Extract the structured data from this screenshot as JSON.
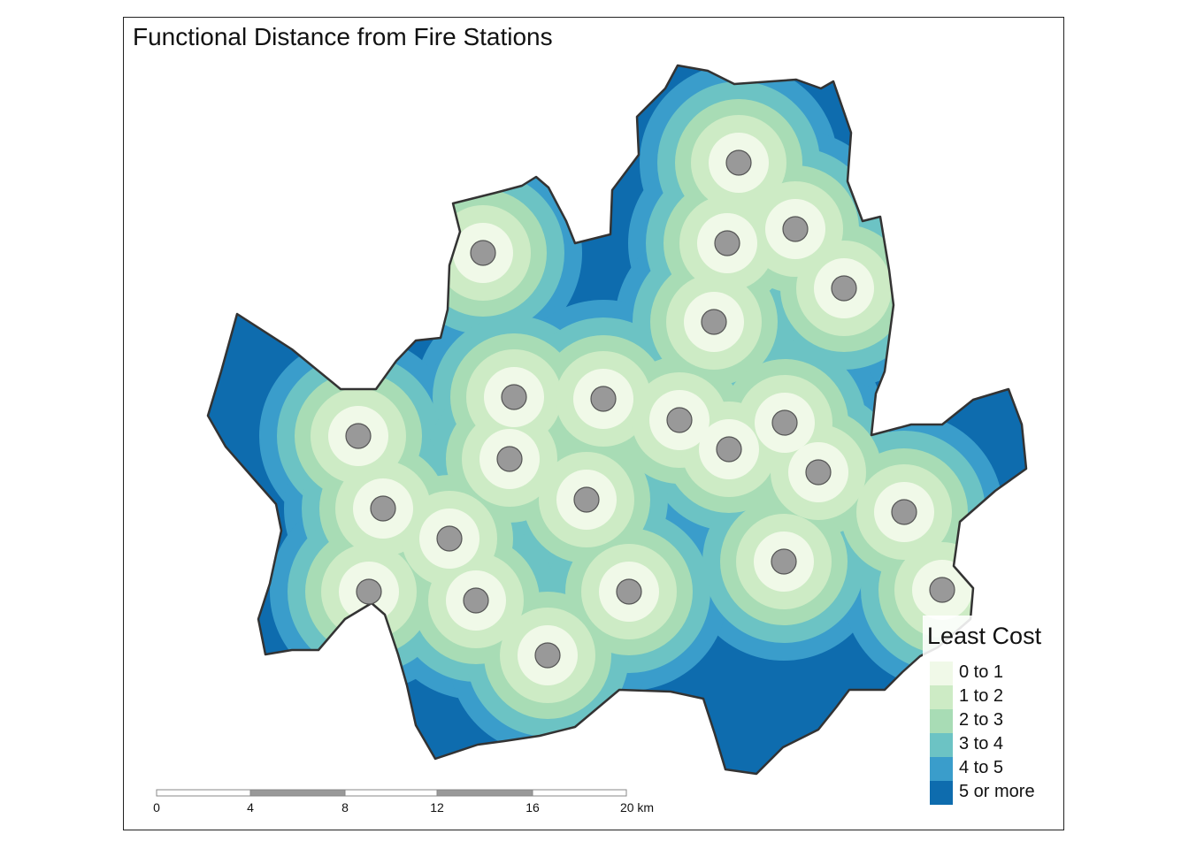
{
  "map": {
    "title": "Functional Distance from Fire Stations"
  },
  "legend": {
    "title": "Least Cost",
    "items": [
      {
        "label": "0 to 1",
        "color": "#f0f9e8"
      },
      {
        "label": "1 to 2",
        "color": "#cdebc5"
      },
      {
        "label": "2 to 3",
        "color": "#a8dcb5"
      },
      {
        "label": "3 to 4",
        "color": "#6cc3c4"
      },
      {
        "label": "4 to 5",
        "color": "#3a9dcb"
      },
      {
        "label": "5 or more",
        "color": "#0e6cae"
      }
    ]
  },
  "scale_bar": {
    "labels": [
      "0",
      "4",
      "8",
      "12",
      "16",
      "20 km"
    ]
  },
  "colors": {
    "station_fill": "#999999",
    "station_stroke": "#555555",
    "boundary": "#333333"
  }
}
